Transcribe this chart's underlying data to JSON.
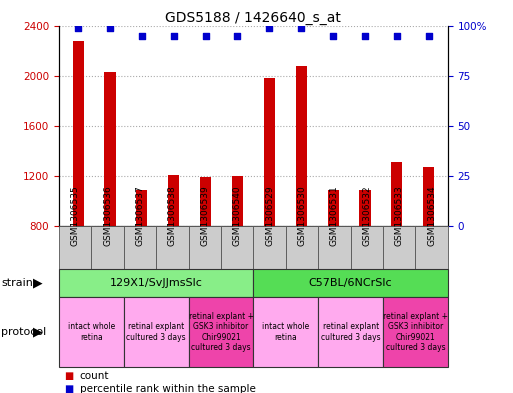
{
  "title": "GDS5188 / 1426640_s_at",
  "samples": [
    "GSM1306535",
    "GSM1306536",
    "GSM1306537",
    "GSM1306538",
    "GSM1306539",
    "GSM1306540",
    "GSM1306529",
    "GSM1306530",
    "GSM1306531",
    "GSM1306532",
    "GSM1306533",
    "GSM1306534"
  ],
  "counts": [
    2280,
    2030,
    1090,
    1210,
    1190,
    1195,
    1980,
    2080,
    1090,
    1090,
    1310,
    1270
  ],
  "percentiles": [
    99,
    99,
    95,
    95,
    95,
    95,
    99,
    99,
    95,
    95,
    95,
    95
  ],
  "ylim_left": [
    800,
    2400
  ],
  "ylim_right": [
    0,
    100
  ],
  "yticks_left": [
    800,
    1200,
    1600,
    2000,
    2400
  ],
  "yticks_right": [
    0,
    25,
    50,
    75,
    100
  ],
  "bar_color": "#cc0000",
  "dot_color": "#0000cc",
  "bg_color": "#ffffff",
  "sample_box_color": "#cccccc",
  "strain_groups": [
    {
      "label": "129X1/SvJJmsSlc",
      "start": 0,
      "end": 6,
      "color": "#88ee88"
    },
    {
      "label": "C57BL/6NCrSlc",
      "start": 6,
      "end": 12,
      "color": "#55dd55"
    }
  ],
  "protocol_groups": [
    {
      "label": "intact whole\nretina",
      "start": 0,
      "end": 2,
      "color": "#ffaaee"
    },
    {
      "label": "retinal explant\ncultured 3 days",
      "start": 2,
      "end": 4,
      "color": "#ffaaee"
    },
    {
      "label": "retinal explant +\nGSK3 inhibitor\nChir99021\ncultured 3 days",
      "start": 4,
      "end": 6,
      "color": "#ee44aa"
    },
    {
      "label": "intact whole\nretina",
      "start": 6,
      "end": 8,
      "color": "#ffaaee"
    },
    {
      "label": "retinal explant\ncultured 3 days",
      "start": 8,
      "end": 10,
      "color": "#ffaaee"
    },
    {
      "label": "retinal explant +\nGSK3 inhibitor\nChir99021\ncultured 3 days",
      "start": 10,
      "end": 12,
      "color": "#ee44aa"
    }
  ],
  "grid_color": "#aaaaaa",
  "tick_color_left": "#cc0000",
  "tick_color_right": "#0000cc",
  "bar_width": 0.35,
  "title_fontsize": 10,
  "tick_fontsize": 7.5,
  "sample_fontsize": 6.5,
  "strain_fontsize": 8,
  "proto_fontsize": 5.5,
  "legend_fontsize": 7.5,
  "side_label_fontsize": 8
}
